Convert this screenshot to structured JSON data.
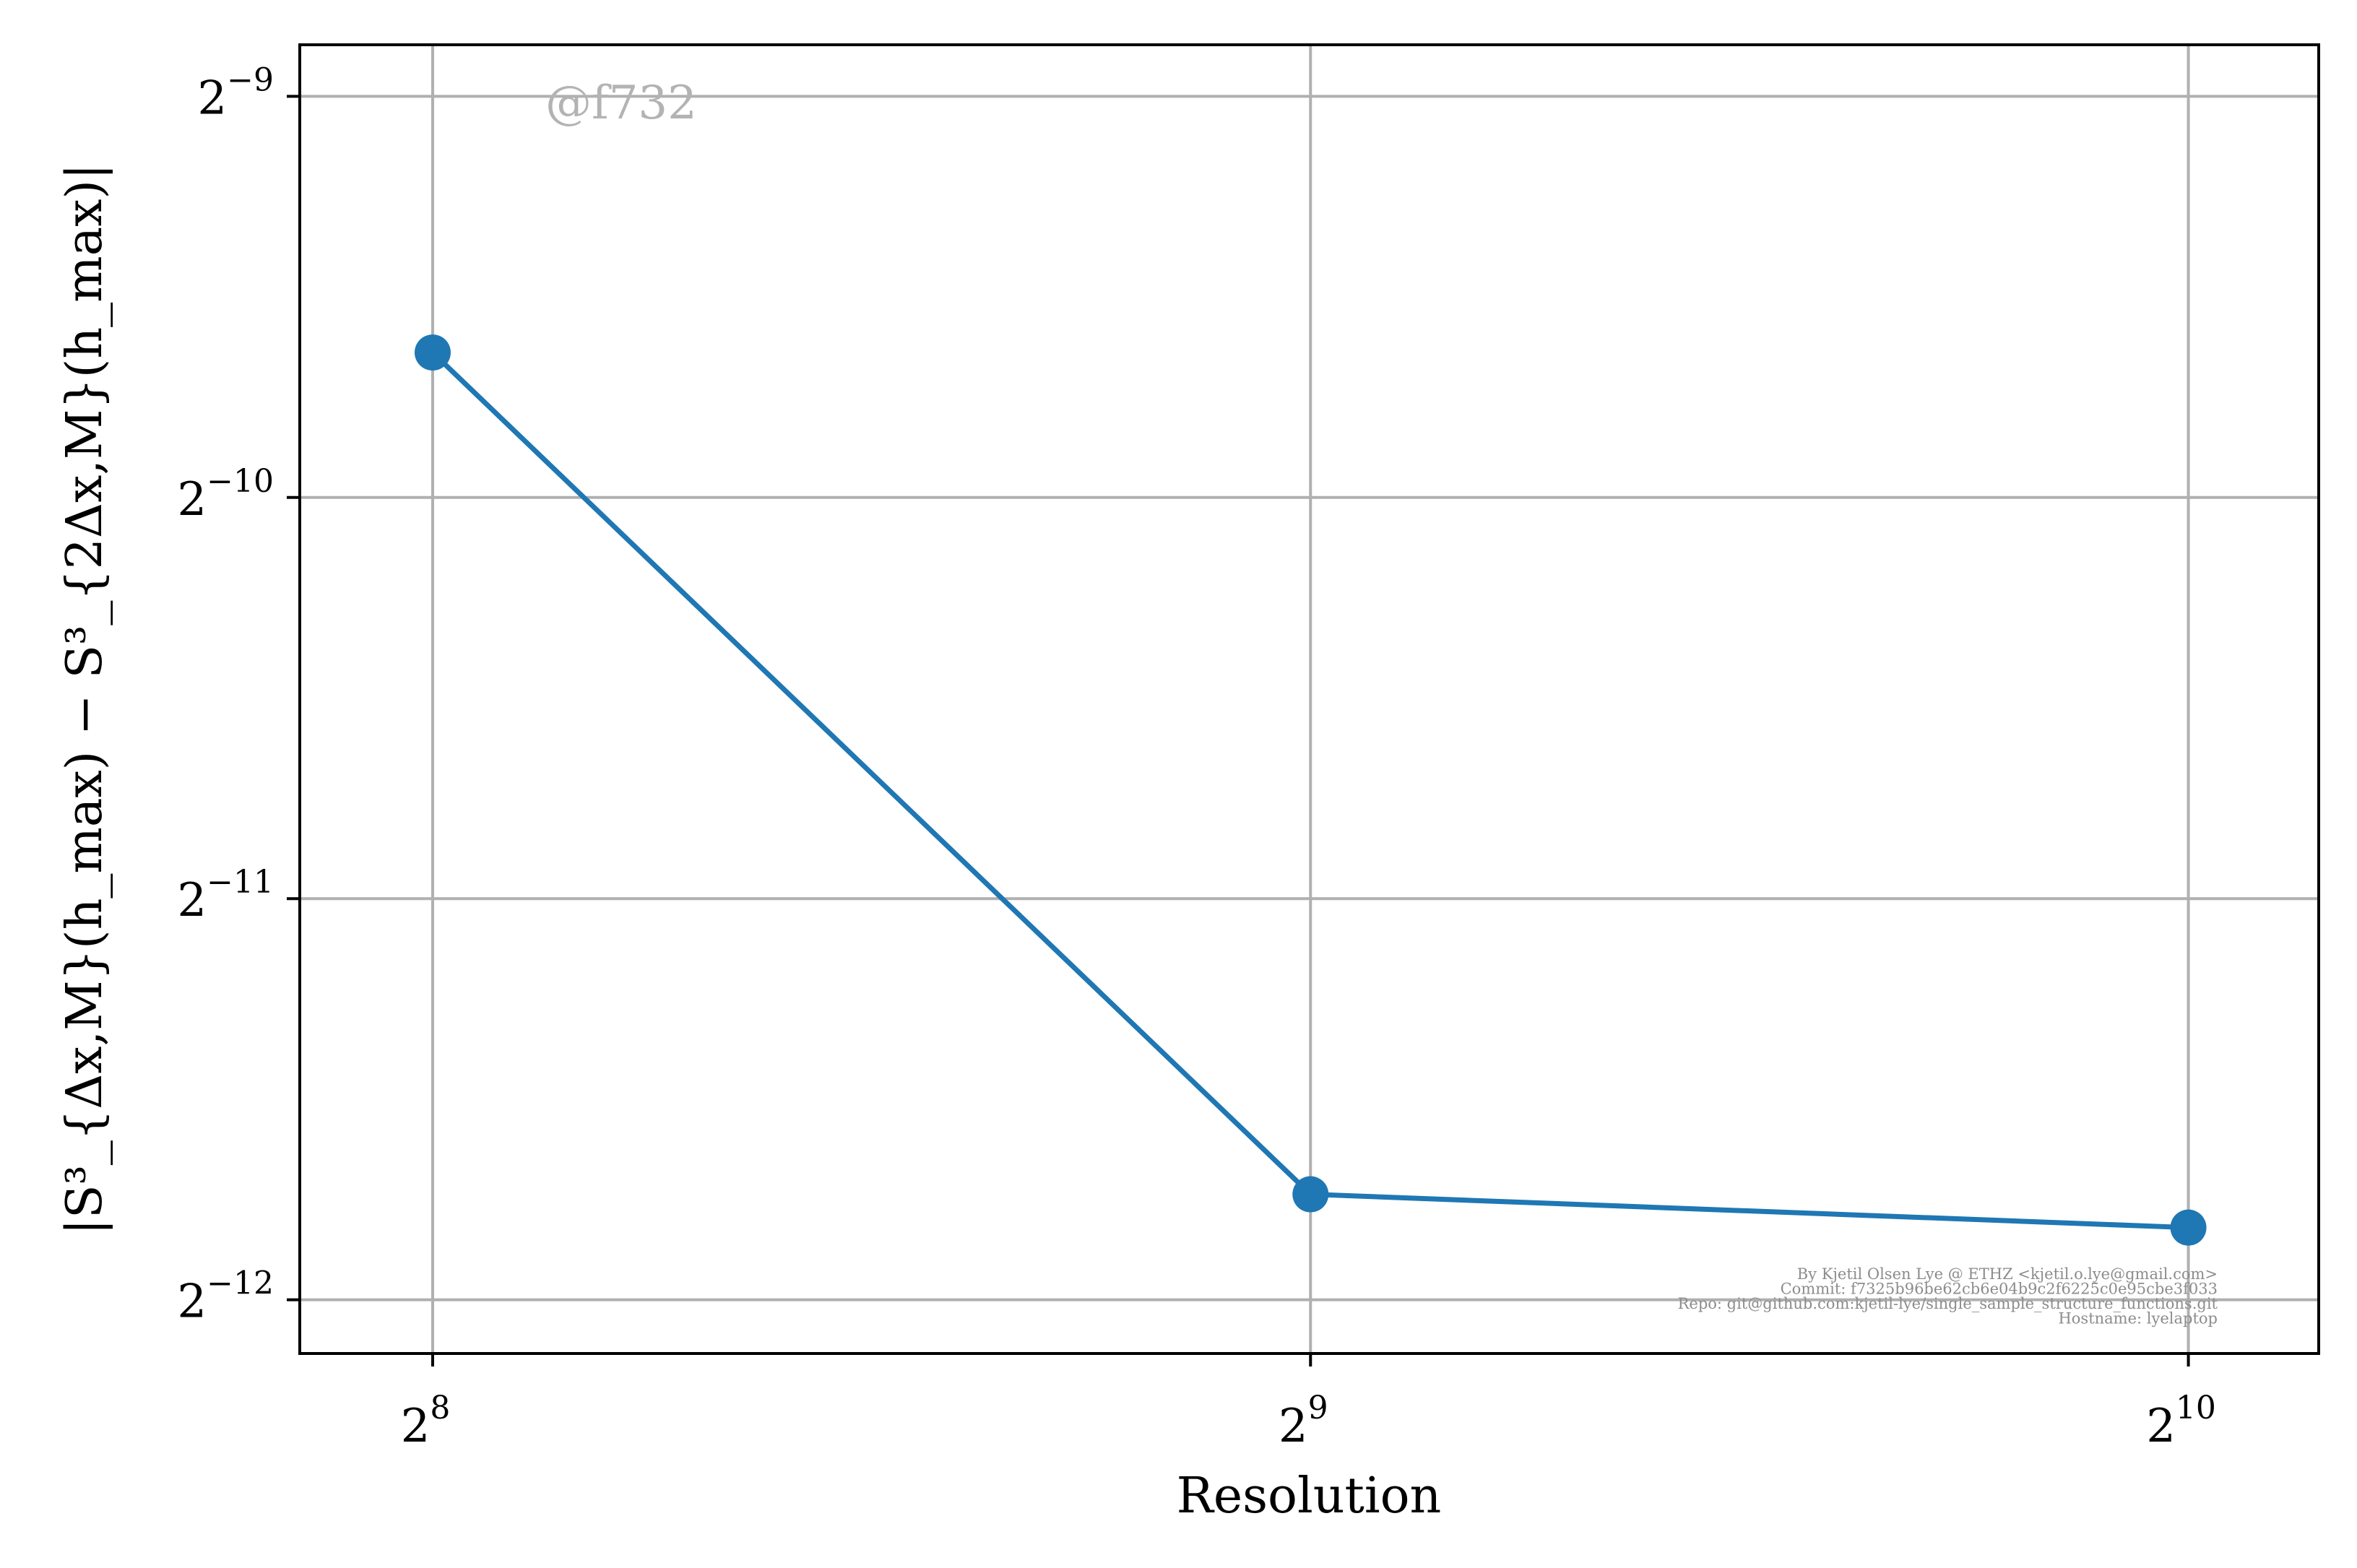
{
  "chart_data": {
    "type": "line",
    "xscale": "log2",
    "yscale": "log2",
    "xlabel": "Resolution",
    "ylabel": "|S³_{Δx,M}(h_max) − S³_{2Δx,M}(h_max)|",
    "x": [
      256,
      512,
      1024
    ],
    "series": [
      {
        "values": [
          0.0012545,
          0.00029296,
          0.00027657
        ]
      }
    ],
    "xticks": [
      {
        "value": 256,
        "base": "2",
        "exp": "8"
      },
      {
        "value": 512,
        "base": "2",
        "exp": "9"
      },
      {
        "value": 1024,
        "base": "2",
        "exp": "10"
      }
    ],
    "yticks": [
      {
        "value": 0.001953125,
        "base": "2",
        "exp": "−9"
      },
      {
        "value": 0.0009765625,
        "base": "2",
        "exp": "−10"
      },
      {
        "value": 0.00048828125,
        "base": "2",
        "exp": "−11"
      },
      {
        "value": 0.000244140625,
        "base": "2",
        "exp": "−12"
      }
    ],
    "xlim": [
      230.5,
      1135
    ],
    "ylim": [
      0.0002225,
      0.002135
    ],
    "grid": true,
    "line_color": "#1f77b4",
    "grid_color": "#b0b0b0",
    "watermark": "@f732",
    "annotation_lines": [
      "By Kjetil Olsen Lye @ ETHZ <kjetil.o.lye@gmail.com>",
      "Commit: f7325b96be62cb6e04b9c2f6225c0e95cbe3f033",
      "Repo: git@github.com:kjetil-lye/single_sample_structure_functions.git",
      "Hostname: lyelaptop"
    ]
  }
}
